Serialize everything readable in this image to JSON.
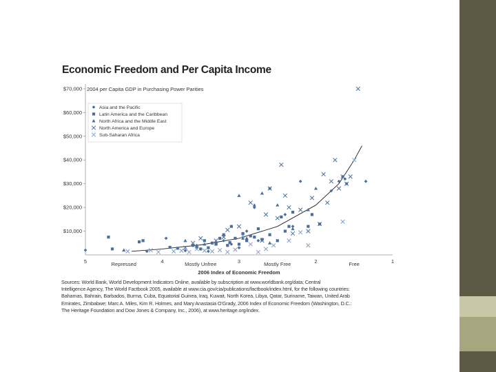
{
  "colors": {
    "background": "#ffffff",
    "sidebar_dark": "#5e5944",
    "sidebar_light": "#c9c8a6",
    "sidebar_mid": "#a7a67e",
    "marker": "#4a6f9c",
    "marker_light": "#7f9dc2",
    "curve": "#222222"
  },
  "chart_data": {
    "type": "scatter",
    "title": "Economic Freedom and Per Capita Income",
    "ylabel": "2004 per Capita GDP in Purchasing Power Parities",
    "xlabel": "2006 Index of Economic Freedom",
    "xlim": [
      5,
      1
    ],
    "x_reversed": true,
    "ylim": [
      0,
      72000
    ],
    "x_ticks": [
      "5",
      "4",
      "3",
      "2",
      "1"
    ],
    "y_ticks": [
      "$10,000",
      "$20,000",
      "$30,000",
      "$40,000",
      "$50,000",
      "$60,000",
      "$70,000"
    ],
    "y_tick_values": [
      10000,
      20000,
      30000,
      40000,
      50000,
      60000,
      70000
    ],
    "category_labels": [
      {
        "label": "Repressed",
        "x": 4.5
      },
      {
        "label": "Mostly Unfree",
        "x": 3.5
      },
      {
        "label": "Mostly Free",
        "x": 2.5
      },
      {
        "label": "Free",
        "x": 1.5
      }
    ],
    "grid": false,
    "legend_placement": "top-left",
    "trend_line": {
      "type": "exponential",
      "x": [
        4.4,
        4.0,
        3.5,
        3.0,
        2.5,
        2.0,
        1.7,
        1.5,
        1.4
      ],
      "y": [
        1500,
        2500,
        4200,
        7000,
        12000,
        21000,
        30000,
        40000,
        46000
      ]
    },
    "series": [
      {
        "name": "Asia and the Pacific",
        "marker": "diamond",
        "x": [
          5.0,
          4.2,
          3.95,
          3.7,
          3.55,
          3.4,
          3.3,
          3.2,
          3.1,
          3.0,
          2.9,
          2.8,
          2.75,
          2.6,
          2.4,
          2.3,
          2.2,
          1.8,
          1.7,
          1.65,
          1.62,
          1.6,
          1.35
        ],
        "y": [
          2000,
          1500,
          7000,
          1800,
          4000,
          1500,
          5000,
          6000,
          4500,
          3000,
          10000,
          20000,
          6000,
          28000,
          17000,
          12000,
          31000,
          27000,
          31000,
          33000,
          32000,
          30000,
          31000
        ]
      },
      {
        "name": "Latin America and the Caribbean",
        "marker": "square",
        "x": [
          4.7,
          4.65,
          4.3,
          4.25,
          3.9,
          3.8,
          3.6,
          3.55,
          3.5,
          3.45,
          3.4,
          3.35,
          3.3,
          3.25,
          3.2,
          3.15,
          3.12,
          3.1,
          3.05,
          3.0,
          2.95,
          2.9,
          2.85,
          2.8,
          2.75,
          2.7,
          2.6,
          2.5,
          2.45,
          2.4,
          2.35,
          2.3,
          2.1,
          2.05,
          1.95
        ],
        "y": [
          7500,
          2500,
          5500,
          6000,
          3200,
          2800,
          4000,
          3200,
          2500,
          6000,
          3000,
          5000,
          4500,
          7000,
          8500,
          4000,
          5200,
          12000,
          7000,
          4500,
          9000,
          6000,
          8000,
          7500,
          11000,
          6500,
          8500,
          6000,
          16000,
          10000,
          12000,
          18000,
          12000,
          17000,
          13000
        ]
      },
      {
        "name": "North Africa and the Middle East",
        "marker": "triangle",
        "x": [
          4.5,
          3.7,
          3.45,
          3.3,
          3.0,
          2.95,
          2.9,
          2.8,
          2.7,
          2.6,
          2.5,
          2.3,
          2.1,
          2.0
        ],
        "y": [
          2000,
          6000,
          4500,
          5000,
          25000,
          7000,
          7000,
          21000,
          26000,
          5000,
          21000,
          11000,
          19000,
          28000
        ]
      },
      {
        "name": "North America and Europe",
        "marker": "x",
        "x": [
          3.7,
          3.6,
          3.5,
          3.3,
          3.2,
          3.15,
          3.0,
          2.85,
          2.7,
          2.65,
          2.6,
          2.5,
          2.45,
          2.4,
          2.35,
          2.3,
          2.2,
          2.1,
          2.05,
          1.95,
          1.9,
          1.85,
          1.8,
          1.75,
          1.7,
          1.65,
          1.6,
          1.55,
          1.45
        ],
        "y": [
          3000,
          5000,
          7000,
          6000,
          7500,
          10500,
          12000,
          22000,
          6000,
          17000,
          28000,
          15500,
          38000,
          25000,
          20000,
          9000,
          19000,
          10000,
          24000,
          13000,
          34000,
          22000,
          31000,
          40000,
          28000,
          33000,
          30000,
          33000,
          70000
        ]
      },
      {
        "name": "Sub-Saharan Africa",
        "marker": "x",
        "x": [
          4.45,
          4.15,
          4.05,
          3.85,
          3.75,
          3.65,
          3.55,
          3.45,
          3.35,
          3.25,
          3.15,
          3.05,
          2.95,
          2.85,
          2.75,
          2.65,
          2.55,
          2.35,
          2.2,
          2.1,
          1.65,
          1.5
        ],
        "y": [
          1500,
          2000,
          1200,
          1500,
          1800,
          1200,
          2500,
          1800,
          1500,
          2000,
          1200,
          2200,
          8000,
          4500,
          1200,
          2500,
          4000,
          6000,
          9500,
          4000,
          14000,
          40000
        ]
      }
    ]
  },
  "source_note": {
    "lines": [
      "Sources: World Bank, World Development Indicators Online, available by subscription at www.worldbank.org/data; Central",
      "Intelligence Agency, The World Factbook 2005, available at www.cia.gov/cia/publications/factbook/index.html, for the following countries:",
      "Bahamas, Bahrain, Barbados, Burma, Cuba, Equatorial Guinea, Iraq, Kuwait, North Korea, Libya, Qatar, Suriname, Taiwan, United Arab",
      "Emirates, Zimbabwe; Marc A. Miles, Kim R. Holmes, and Mary Anastasia O'Grady, 2006 Index of Economic Freedom (Washington, D.C.:",
      "The Heritage Foundation and Dow Jones & Company, Inc., 2006), at www.heritage.org/index."
    ]
  }
}
